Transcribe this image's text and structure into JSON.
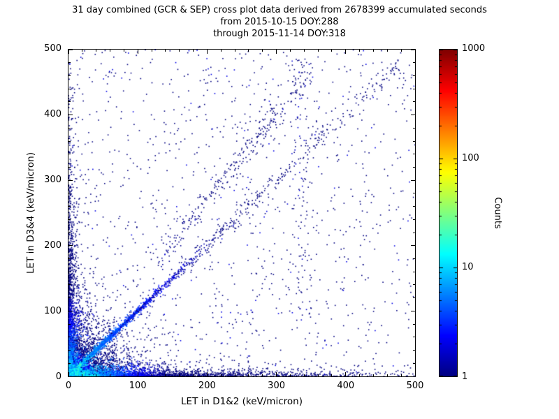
{
  "title": {
    "line1": "31 day combined (GCR & SEP) cross plot data derived from 2678399 accumulated seconds",
    "line2": "from 2015-10-15 DOY:288",
    "line3": "through 2015-11-14 DOY:318"
  },
  "chart_data": {
    "type": "heatmap",
    "subtype": "2d-histogram-scatter",
    "xlabel": "LET in D1&2 (keV/micron)",
    "ylabel": "LET in D3&4 (keV/micron)",
    "xlim": [
      0,
      500
    ],
    "ylim": [
      0,
      500
    ],
    "x_ticks": [
      0,
      100,
      200,
      300,
      400,
      500
    ],
    "y_ticks": [
      0,
      100,
      200,
      300,
      400,
      500
    ],
    "minor_tick_step": 20,
    "grid": false,
    "colorbar": {
      "label": "Counts",
      "scale": "log",
      "range": [
        1,
        1000
      ],
      "ticks": [
        1,
        10,
        100,
        1000
      ],
      "colormap": "jet",
      "count_color_hex": {
        "1": "#000080",
        "10": "#00ccff",
        "100": "#ccff00",
        "1000": "#800000"
      }
    },
    "description": "Density cross plot of LET measured in detectors D1&2 vs D3&4. Very hot (red/yellow, ~1000 counts) core at the origin fading through green/cyan; bright cyan-blue 1:1 correlation diagonal out to ~100 keV/micron fading to sparse dark-blue diagonal points to ~480; dense low-count bands hugging both axes; sparse dark-blue (1-count) background scatter over the whole plane with a faint steeper diagonal branch and a vertical streak near x=336.",
    "seed": 20151015,
    "clusters": [
      {
        "name": "hot-core",
        "kind": "origin",
        "count": 3600,
        "scale_x": 5,
        "scale_y": 5,
        "max_log": 3.0,
        "color_scale": 8,
        "size": 2
      },
      {
        "name": "origin-spray",
        "kind": "origin",
        "count": 2800,
        "scale_x": 30,
        "scale_y": 30,
        "max_log": 1.2,
        "color_scale": 35,
        "size": 1.6
      },
      {
        "name": "diagonal-bright",
        "kind": "diag",
        "count": 3000,
        "t_dist": "exp",
        "t_scale": 30,
        "t_min": 0,
        "t_max": 500,
        "slope": 1,
        "spread": 1.2,
        "max_log": 1.5,
        "color_scale": 60,
        "min_log": 0.15,
        "size": 1.7
      },
      {
        "name": "diagonal-mid",
        "kind": "diag",
        "count": 700,
        "t_dist": "exp",
        "t_scale": 80,
        "t_min": 20,
        "t_max": 500,
        "slope": 1,
        "spread": 4,
        "max_log": 0.9,
        "color_scale": 250,
        "min_log": 0,
        "size": 1.6
      },
      {
        "name": "diagonal-sparse",
        "kind": "diag",
        "count": 240,
        "t_dist": "uniform",
        "t_min": 100,
        "t_max": 480,
        "slope": 1,
        "spread": 9,
        "max_log": 0.2,
        "color_scale": 1000,
        "min_log": 0,
        "size": 1.6
      },
      {
        "name": "diagonal-upper-branch",
        "kind": "diag",
        "count": 260,
        "t_dist": "uniform",
        "t_min": 130,
        "t_max": 345,
        "slope": 1.35,
        "spread": 12,
        "max_log": 0.2,
        "color_scale": 1000,
        "min_log": 0,
        "size": 1.6
      },
      {
        "name": "x-axis-band",
        "kind": "band",
        "count": 2300,
        "scale_x": 120,
        "scale_y": 5,
        "decay_axis": "x",
        "max_log": 1.2,
        "color_scale": 120,
        "size": 1.6
      },
      {
        "name": "y-axis-band",
        "kind": "band",
        "count": 1600,
        "scale_x": 5,
        "scale_y": 110,
        "decay_axis": "y",
        "max_log": 1.0,
        "color_scale": 130,
        "size": 1.6
      },
      {
        "name": "background",
        "kind": "uniform",
        "count": 1100,
        "size": 1.6
      },
      {
        "name": "vertical-streak",
        "kind": "column",
        "count": 120,
        "x_center": 336,
        "x_spread": 9,
        "y_min": 80,
        "y_max": 490,
        "size": 1.6
      }
    ]
  }
}
